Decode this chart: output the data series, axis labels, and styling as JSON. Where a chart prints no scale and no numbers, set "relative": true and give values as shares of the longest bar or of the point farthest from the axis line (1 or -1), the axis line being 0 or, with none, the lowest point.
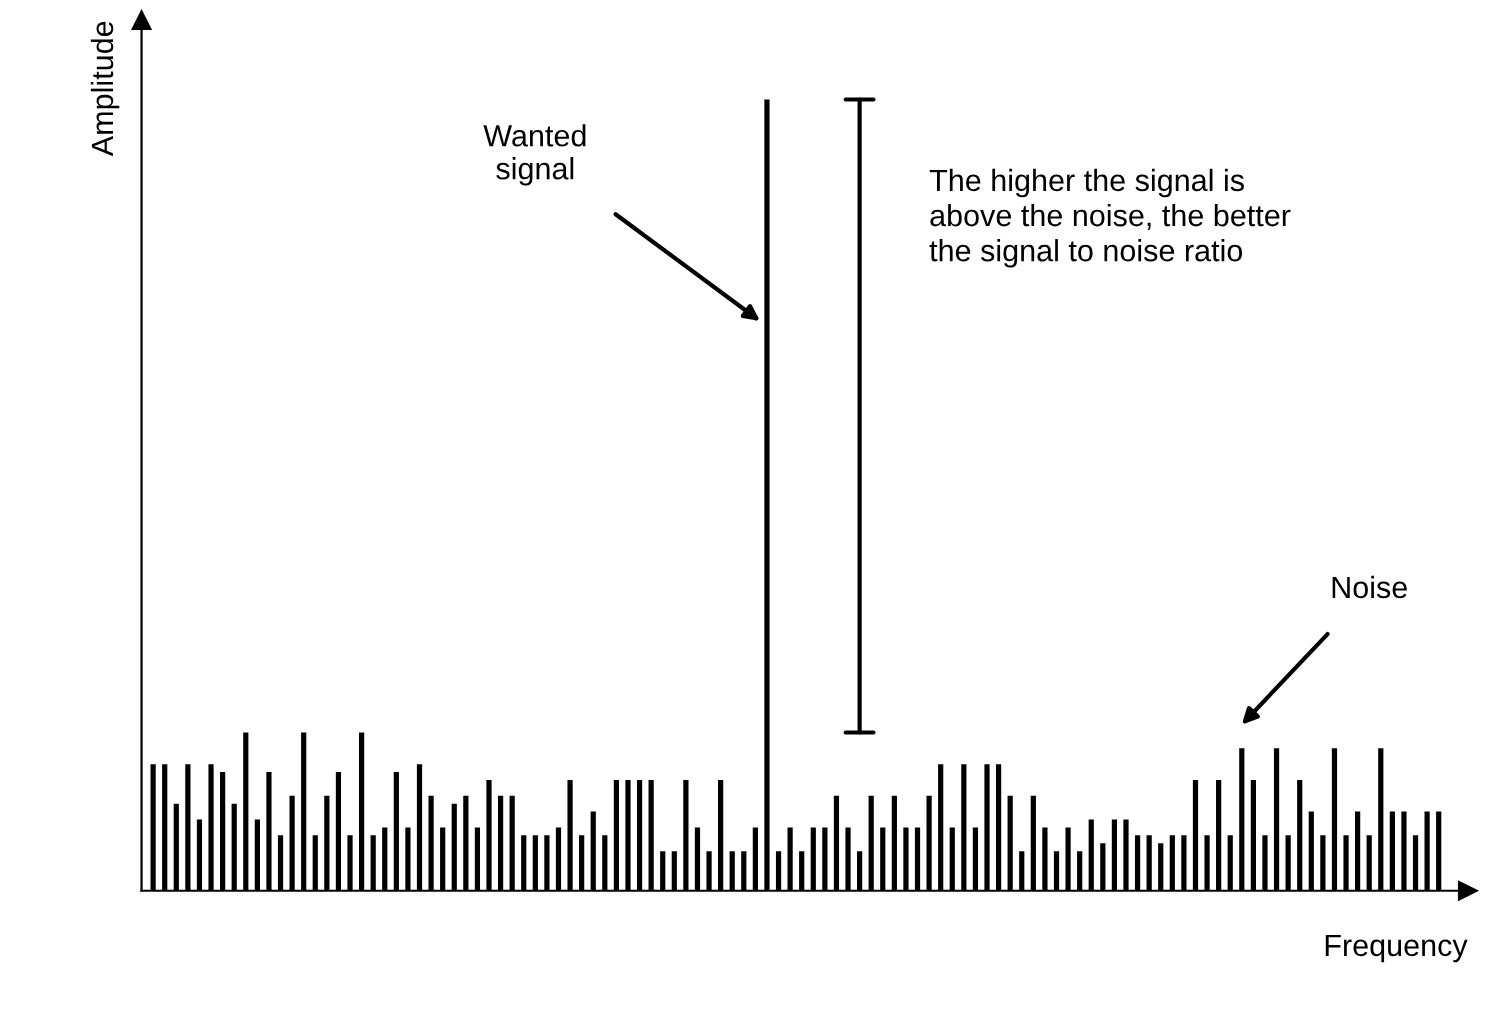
{
  "chart_data": {
    "type": "bar",
    "relative": true,
    "xlabel": "Frequency",
    "ylabel": "Amplitude",
    "color": "#000000",
    "categories": [
      null,
      null,
      null,
      null,
      null,
      null,
      null,
      null,
      null,
      null,
      null,
      null,
      null,
      null,
      null,
      null,
      null,
      null,
      null,
      null,
      null,
      null,
      null,
      null,
      null,
      null,
      null,
      null,
      null,
      null,
      null,
      null,
      null,
      null,
      null,
      null,
      null,
      null,
      null,
      null,
      null,
      null,
      null,
      null,
      null,
      null,
      null,
      null,
      null,
      null,
      null,
      null,
      null,
      null,
      null,
      null,
      null,
      null,
      null,
      null,
      null,
      null,
      null,
      null,
      null,
      null,
      null,
      null,
      null,
      null,
      null,
      null,
      null,
      null,
      null,
      null,
      null,
      null,
      null,
      null,
      null,
      null,
      null,
      null,
      null,
      null,
      null,
      null,
      null,
      null,
      null,
      null,
      null,
      null,
      null,
      null,
      null,
      null,
      null,
      null,
      null,
      null,
      null,
      null,
      null,
      null,
      null,
      null,
      null,
      null,
      null,
      null
    ],
    "values": [
      0.16,
      0.16,
      0.11,
      0.16,
      0.09,
      0.16,
      0.15,
      0.11,
      0.2,
      0.09,
      0.15,
      0.07,
      0.12,
      0.2,
      0.07,
      0.12,
      0.15,
      0.07,
      0.2,
      0.07,
      0.08,
      0.15,
      0.08,
      0.16,
      0.12,
      0.08,
      0.11,
      0.12,
      0.08,
      0.14,
      0.12,
      0.12,
      0.07,
      0.07,
      0.07,
      0.08,
      0.14,
      0.07,
      0.1,
      0.07,
      0.14,
      0.14,
      0.14,
      0.14,
      0.05,
      0.05,
      0.14,
      0.08,
      0.05,
      0.14,
      0.05,
      0.05,
      0.08,
      1,
      0.05,
      0.08,
      0.05,
      0.08,
      0.08,
      0.12,
      0.08,
      0.05,
      0.12,
      0.08,
      0.12,
      0.08,
      0.08,
      0.12,
      0.16,
      0.08,
      0.16,
      0.08,
      0.16,
      0.16,
      0.12,
      0.05,
      0.12,
      0.08,
      0.05,
      0.08,
      0.05,
      0.09,
      0.06,
      0.09,
      0.09,
      0.07,
      0.07,
      0.06,
      0.07,
      0.07,
      0.14,
      0.07,
      0.14,
      0.07,
      0.18,
      0.14,
      0.07,
      0.18,
      0.07,
      0.14,
      0.1,
      0.07,
      0.18,
      0.07,
      0.1,
      0.07,
      0.18,
      0.1,
      0.1,
      0.07,
      0.1,
      0.1
    ],
    "annotations": [
      "Wanted\nsignal",
      "The higher the signal is\nabove the noise, the better\nthe signal to noise ratio",
      "Noise"
    ]
  }
}
